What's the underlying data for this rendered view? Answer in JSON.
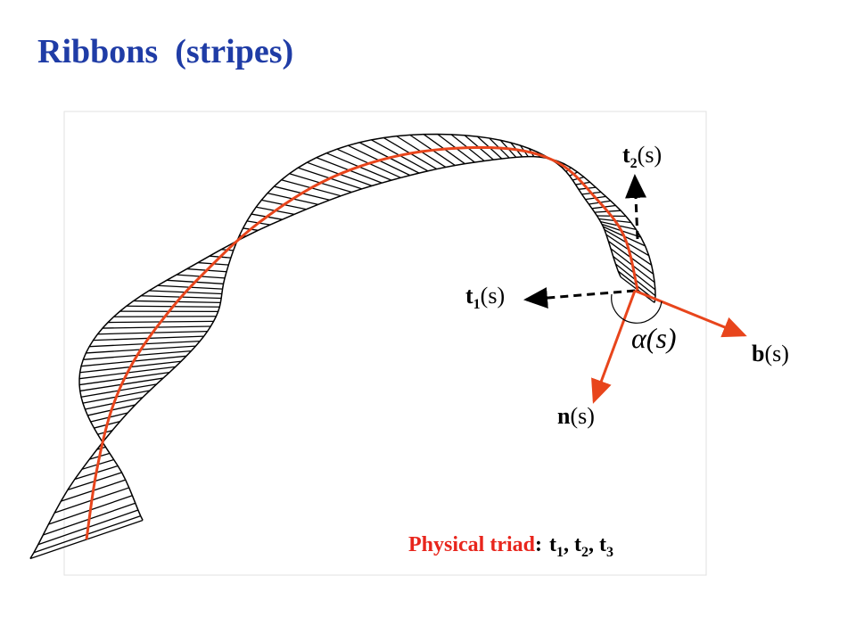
{
  "header": {
    "title": "Ribbons  (stripes)"
  },
  "labels": {
    "t2": {
      "main": "t",
      "sub": "2",
      "arg": "(s)"
    },
    "t1": {
      "main": "t",
      "sub": "1",
      "arg": "(s)"
    },
    "b": {
      "main": "b",
      "arg": "(s)"
    },
    "n": {
      "main": "n",
      "arg": "(s)"
    },
    "alpha": {
      "symbol": "α",
      "arg": "(s)"
    }
  },
  "footer": {
    "label": "Physical triad",
    "colon": ":",
    "separator": ",",
    "items": [
      {
        "main": "t",
        "sub": "1"
      },
      {
        "main": "t",
        "sub": "2"
      },
      {
        "main": "t",
        "sub": "3"
      }
    ]
  }
}
